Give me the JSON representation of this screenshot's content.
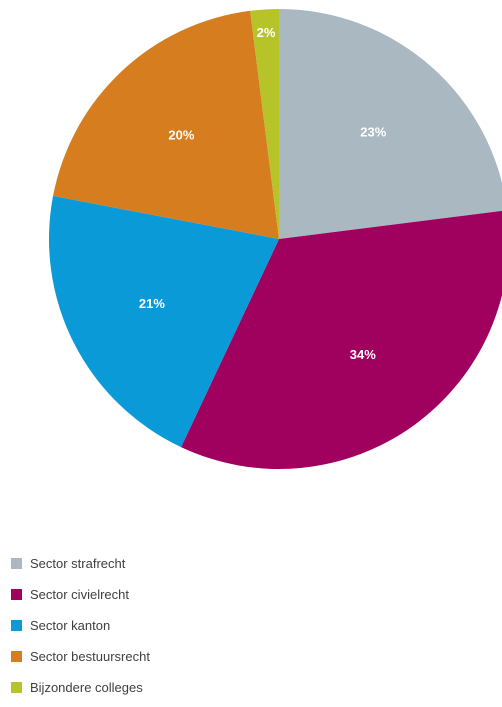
{
  "chart_data": {
    "type": "pie",
    "title": "",
    "slices": [
      {
        "label": "Sector strafrecht",
        "value": 23,
        "display": "23%",
        "color": "#aab8c2"
      },
      {
        "label": "Sector civielrecht",
        "value": 34,
        "display": "34%",
        "color": "#a0005e"
      },
      {
        "label": "Sector kanton",
        "value": 21,
        "display": "21%",
        "color": "#0a9ad8"
      },
      {
        "label": "Sector bestuursrecht",
        "value": 20,
        "display": "20%",
        "color": "#d57d1f"
      },
      {
        "label": "Bijzondere colleges",
        "value": 2,
        "display": "2%",
        "color": "#b6c42a"
      }
    ],
    "legend_position": "bottom-left",
    "start": "top",
    "direction": "clockwise"
  }
}
